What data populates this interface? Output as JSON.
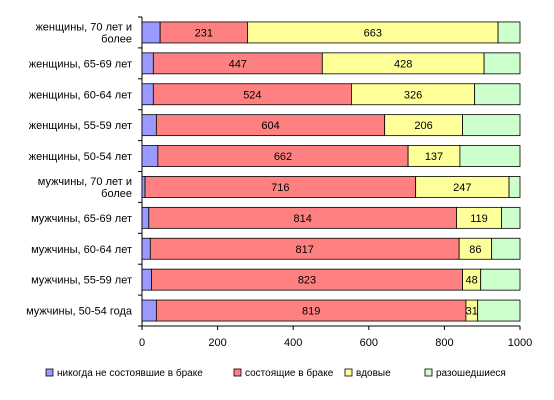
{
  "chart_data": {
    "type": "bar",
    "orientation": "horizontal",
    "stacked": true,
    "title": "",
    "xlabel": "",
    "ylabel": "",
    "xlim": [
      0,
      1000
    ],
    "xticks": [
      "0",
      "200",
      "400",
      "600",
      "800",
      "1000"
    ],
    "grid": false,
    "legend_position": "bottom",
    "categories": [
      [
        "женщины, 70 лет и",
        "более"
      ],
      [
        "женщины, 65-69 лет"
      ],
      [
        "женщины, 60-64 лет"
      ],
      [
        "женщины, 55-59 лет"
      ],
      [
        "женщины, 50-54 лет"
      ],
      [
        "мужчины, 70 лет и",
        "более"
      ],
      [
        "мужчины, 65-69 лет"
      ],
      [
        "мужчины, 60-64 лет"
      ],
      [
        "мужчины, 55-59 лет"
      ],
      [
        "мужчины, 50-54 года"
      ]
    ],
    "series": [
      {
        "name": "никогда не состоявшие в браке",
        "color": "#9999ff",
        "values": [
          48,
          30,
          30,
          38,
          42,
          8,
          18,
          22,
          25,
          38
        ],
        "show_labels": false
      },
      {
        "name": "состоящие в браке",
        "color": "#ff8080",
        "values": [
          231,
          447,
          524,
          604,
          662,
          716,
          814,
          817,
          823,
          819
        ],
        "show_labels": true
      },
      {
        "name": "вдовые",
        "color": "#ffff99",
        "values": [
          663,
          428,
          326,
          206,
          137,
          247,
          119,
          86,
          48,
          31
        ],
        "show_labels": true
      },
      {
        "name": "разошедшиеся",
        "color": "#ccffcc",
        "values": [
          58,
          95,
          120,
          152,
          159,
          29,
          49,
          75,
          104,
          112
        ],
        "show_labels": false
      }
    ]
  }
}
